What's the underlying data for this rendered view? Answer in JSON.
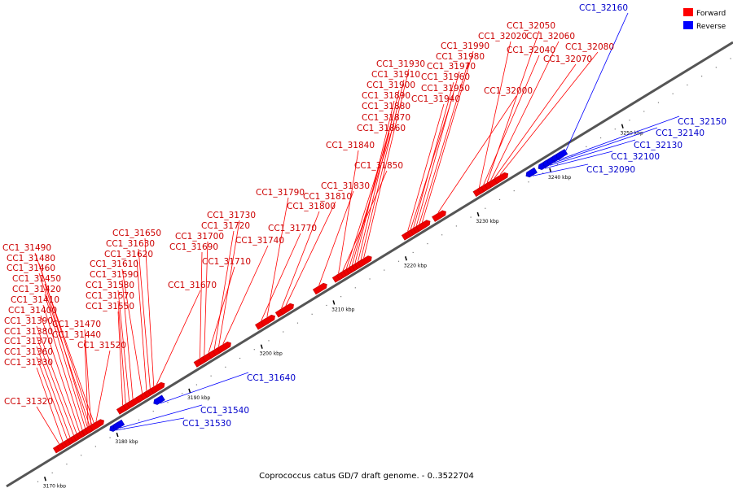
{
  "legend": [
    {
      "label": "Forward",
      "color": "#ff0000"
    },
    {
      "label": "Reverse",
      "color": "#0000ff"
    }
  ],
  "caption": "Coprococcus catus GD/7 draft genome. - 0..3522704",
  "axis": {
    "start_kbp": 3166,
    "end_kbp": 3266
  },
  "kbp_ticks": [
    "3170 kbp",
    "3180 kbp",
    "3190 kbp",
    "3200 kbp",
    "3210 kbp",
    "3220 kbp",
    "3230 kbp",
    "3240 kbp",
    "3250 kbp"
  ],
  "forward_genes": [
    {
      "name": "CC1_31320",
      "pos": 3173.5
    },
    {
      "name": "CC1_31330",
      "pos": 3174.0
    },
    {
      "name": "CC1_31360",
      "pos": 3174.6
    },
    {
      "name": "CC1_31370",
      "pos": 3175.0
    },
    {
      "name": "CC1_31380",
      "pos": 3175.5
    },
    {
      "name": "CC1_31390",
      "pos": 3175.9
    },
    {
      "name": "CC1_31400",
      "pos": 3176.3
    },
    {
      "name": "CC1_31410",
      "pos": 3176.7
    },
    {
      "name": "CC1_31420",
      "pos": 3177.1
    },
    {
      "name": "CC1_31450",
      "pos": 3177.4
    },
    {
      "name": "CC1_31460",
      "pos": 3177.7
    },
    {
      "name": "CC1_31480",
      "pos": 3178.0
    },
    {
      "name": "CC1_31490",
      "pos": 3178.3
    },
    {
      "name": "CC1_31440",
      "pos": 3177.5
    },
    {
      "name": "CC1_31470",
      "pos": 3177.9
    },
    {
      "name": "CC1_31520",
      "pos": 3178.6
    },
    {
      "name": "CC1_31550",
      "pos": 3182.3
    },
    {
      "name": "CC1_31570",
      "pos": 3182.7
    },
    {
      "name": "CC1_31580",
      "pos": 3183.2
    },
    {
      "name": "CC1_31590",
      "pos": 3183.7
    },
    {
      "name": "CC1_31610",
      "pos": 3185.0
    },
    {
      "name": "CC1_31620",
      "pos": 3185.6
    },
    {
      "name": "CC1_31630",
      "pos": 3186.1
    },
    {
      "name": "CC1_31650",
      "pos": 3186.6
    },
    {
      "name": "CC1_31670",
      "pos": 3187.0
    },
    {
      "name": "CC1_31690",
      "pos": 3193.0
    },
    {
      "name": "CC1_31700",
      "pos": 3193.6
    },
    {
      "name": "CC1_31710",
      "pos": 3194.2
    },
    {
      "name": "CC1_31720",
      "pos": 3195.0
    },
    {
      "name": "CC1_31730",
      "pos": 3195.6
    },
    {
      "name": "CC1_31740",
      "pos": 3196.2
    },
    {
      "name": "CC1_31770",
      "pos": 3201.5
    },
    {
      "name": "CC1_31790",
      "pos": 3202.3
    },
    {
      "name": "CC1_31800",
      "pos": 3204.3
    },
    {
      "name": "CC1_31810",
      "pos": 3204.9
    },
    {
      "name": "CC1_31830",
      "pos": 3209.5
    },
    {
      "name": "CC1_31840",
      "pos": 3212.2
    },
    {
      "name": "CC1_31850",
      "pos": 3212.8
    },
    {
      "name": "CC1_31860",
      "pos": 3213.3
    },
    {
      "name": "CC1_31870",
      "pos": 3213.7
    },
    {
      "name": "CC1_31880",
      "pos": 3214.1
    },
    {
      "name": "CC1_31890",
      "pos": 3214.5
    },
    {
      "name": "CC1_31900",
      "pos": 3214.9
    },
    {
      "name": "CC1_31910",
      "pos": 3215.3
    },
    {
      "name": "CC1_31930",
      "pos": 3215.7
    },
    {
      "name": "CC1_31940",
      "pos": 3221.8
    },
    {
      "name": "CC1_31950",
      "pos": 3222.2
    },
    {
      "name": "CC1_31960",
      "pos": 3222.6
    },
    {
      "name": "CC1_31970",
      "pos": 3223.0
    },
    {
      "name": "CC1_31980",
      "pos": 3223.4
    },
    {
      "name": "CC1_31990",
      "pos": 3223.8
    },
    {
      "name": "CC1_32000",
      "pos": 3226.0
    },
    {
      "name": "CC1_32020",
      "pos": 3231.7
    },
    {
      "name": "CC1_32040",
      "pos": 3232.3
    },
    {
      "name": "CC1_32050",
      "pos": 3232.8
    },
    {
      "name": "CC1_32060",
      "pos": 3233.3
    },
    {
      "name": "CC1_32070",
      "pos": 3233.8
    },
    {
      "name": "CC1_32080",
      "pos": 3234.6
    }
  ],
  "reverse_genes": [
    {
      "name": "CC1_31530",
      "pos": 3180.1
    },
    {
      "name": "CC1_31540",
      "pos": 3180.6
    },
    {
      "name": "CC1_31640",
      "pos": 3186.2
    },
    {
      "name": "CC1_32090",
      "pos": 3237.8
    },
    {
      "name": "CC1_32100",
      "pos": 3239.5
    },
    {
      "name": "CC1_32130",
      "pos": 3240.2
    },
    {
      "name": "CC1_32140",
      "pos": 3240.8
    },
    {
      "name": "CC1_32150",
      "pos": 3241.4
    },
    {
      "name": "CC1_32160",
      "pos": 3242.0
    }
  ]
}
